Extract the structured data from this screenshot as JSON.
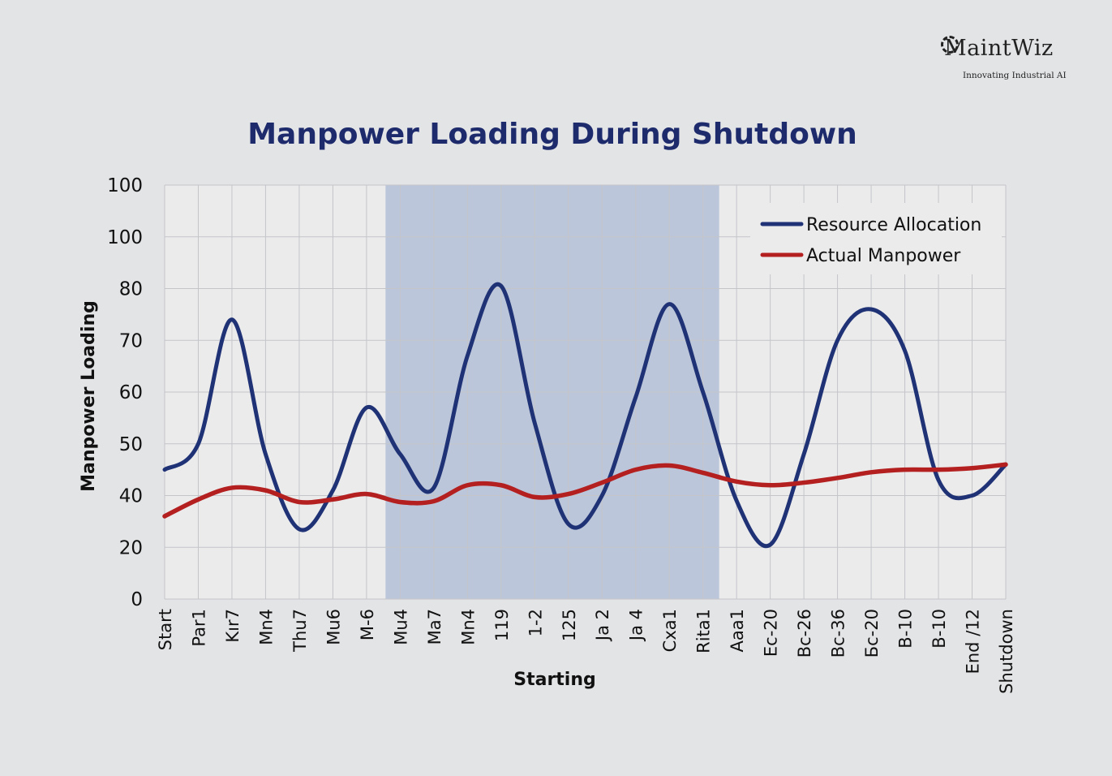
{
  "logo": {
    "name": "MaintWiz",
    "tagline": "Innovating Industrial AI"
  },
  "chart_data": {
    "type": "line",
    "title": "Manpower Loading During Shutdown",
    "xlabel": "Starting",
    "ylabel": "Manpower Loading",
    "y_tick_labels": [
      "0",
      "20",
      "40",
      "50",
      "60",
      "70",
      "80",
      "100",
      "100"
    ],
    "categories": [
      "Start",
      "Par1",
      "Kır7",
      "Mn4",
      "Thu7",
      "Mu6",
      "M-6",
      "Mu4",
      "Ma7",
      "Mn4",
      "119",
      "1-2",
      "125",
      "Ja 2",
      "Ja 4",
      "Cxa1",
      "Rita1",
      "Aaa1",
      "Ec-20",
      "Bc-26",
      "Bc-36",
      "Бc-20",
      "B-10",
      "B-10",
      "End /12",
      "Shutdown"
    ],
    "series": [
      {
        "name": "Resource Allocation",
        "color": "#1f3275",
        "values": [
          45,
          50,
          74,
          48,
          27,
          41,
          57,
          48,
          41.5,
          67,
          81,
          54,
          29,
          40,
          59,
          77,
          60,
          38,
          21,
          48,
          70,
          76,
          68,
          43,
          40,
          46
        ]
      },
      {
        "name": "Actual Manpower",
        "color": "#b41f1f",
        "values": [
          32,
          38.5,
          41.5,
          41,
          37.5,
          38.5,
          40.3,
          37.5,
          37.8,
          42,
          42,
          39.4,
          40.3,
          42.5,
          45,
          45.8,
          44.4,
          42.7,
          42,
          42.5,
          43.4,
          44.5,
          45,
          45,
          45.3,
          46
        ]
      }
    ],
    "highlight": {
      "from": "Mu4",
      "to": "Rita1",
      "color": "#bcc6da"
    },
    "grid": true,
    "legend": "top-right"
  }
}
